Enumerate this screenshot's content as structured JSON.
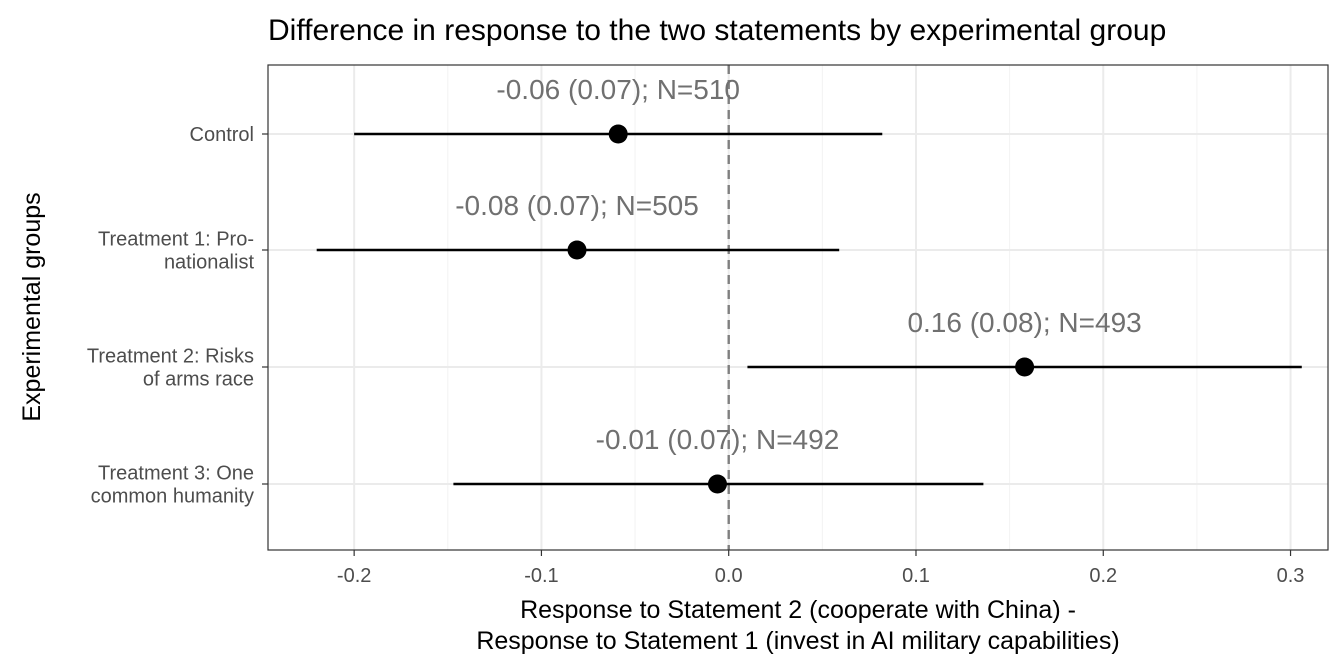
{
  "chart_data": {
    "type": "pointrange",
    "title": "Difference in response to the two statements by experimental group",
    "xlabel_lines": [
      "Response to Statement 2 (cooperate with China) -",
      "Response to Statement 1 (invest in AI military capabilities)"
    ],
    "ylabel": "Experimental groups",
    "xlim": [
      -0.246,
      0.32
    ],
    "xticks": [
      -0.2,
      -0.1,
      0.0,
      0.1,
      0.2,
      0.3
    ],
    "xtick_labels": [
      "-0.2",
      "-0.1",
      "0.0",
      "0.1",
      "0.2",
      "0.3"
    ],
    "reference_line": {
      "x": 0,
      "style": "dashed"
    },
    "grid": true,
    "groups": [
      {
        "label_lines": [
          "Control"
        ],
        "estimate": -0.059,
        "ci_low": -0.2,
        "ci_high": 0.082,
        "annotation": "-0.06 (0.07); N=510"
      },
      {
        "label_lines": [
          "Treatment 1: Pro-",
          "nationalist"
        ],
        "estimate": -0.081,
        "ci_low": -0.22,
        "ci_high": 0.059,
        "annotation": "-0.08 (0.07); N=505"
      },
      {
        "label_lines": [
          "Treatment 2: Risks",
          "of arms race"
        ],
        "estimate": 0.158,
        "ci_low": 0.01,
        "ci_high": 0.306,
        "annotation": "0.16 (0.08); N=493"
      },
      {
        "label_lines": [
          "Treatment 3: One",
          "common humanity"
        ],
        "estimate": -0.006,
        "ci_low": -0.147,
        "ci_high": 0.136,
        "annotation": "-0.01 (0.07); N=492"
      }
    ]
  }
}
